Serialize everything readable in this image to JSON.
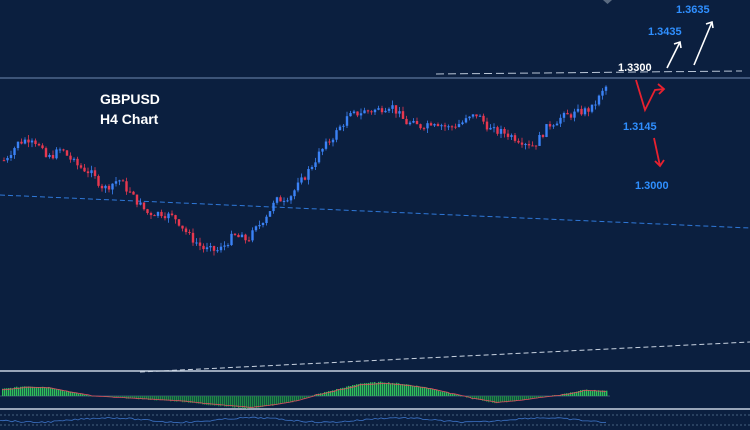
{
  "chart_data": {
    "type": "candlestick",
    "symbol": "GBPUSD",
    "timeframe_label": "H4 Chart",
    "price_range": [
      1.2575,
      1.364
    ],
    "resistance_line": 1.33,
    "levels": [
      {
        "label": "1.3635",
        "price": 1.3635,
        "color": "#2f8fff",
        "direction": "up"
      },
      {
        "label": "1.3435",
        "price": 1.3435,
        "color": "#2f8fff",
        "direction": "up"
      },
      {
        "label": "1.3300",
        "price": 1.33,
        "color": "#ffffff",
        "direction": "pivot"
      },
      {
        "label": "1.3145",
        "price": 1.3145,
        "color": "#2f8fff",
        "direction": "down"
      },
      {
        "label": "1.3000",
        "price": 1.3,
        "color": "#2f8fff",
        "direction": "down"
      }
    ],
    "price_path_keypoints": [
      1.3055,
      1.312,
      1.314,
      1.306,
      1.3095,
      1.304,
      1.301,
      1.295,
      1.2985,
      1.292,
      1.286,
      1.286,
      1.284,
      1.277,
      1.2725,
      1.272,
      1.2775,
      1.276,
      1.283,
      1.2905,
      1.2925,
      1.2995,
      1.308,
      1.3145,
      1.3215,
      1.3235,
      1.324,
      1.326,
      1.3195,
      1.318,
      1.32,
      1.3175,
      1.3195,
      1.3225,
      1.3165,
      1.3155,
      1.313,
      1.311,
      1.3185,
      1.3215,
      1.323,
      1.3245,
      1.3325
    ],
    "oscillator_keypoints": [
      0.5,
      0.7,
      0.65,
      0.3,
      0.0,
      -0.1,
      -0.2,
      -0.3,
      -0.4,
      -0.6,
      -0.75,
      -0.9,
      -0.7,
      -0.4,
      0.1,
      0.5,
      0.9,
      1.0,
      0.85,
      0.6,
      0.2,
      -0.2,
      -0.5,
      -0.35,
      -0.1,
      0.1,
      0.45,
      0.35
    ],
    "colors": {
      "background": "#0b1f3f",
      "bull_candle": "#3b82f6",
      "bear_candle": "#e8384f",
      "level_blue": "#2f8fff",
      "arrow_red": "#e8212f",
      "arrow_white": "#ffffff",
      "histogram": "#2fbf5a"
    },
    "grid": false
  }
}
